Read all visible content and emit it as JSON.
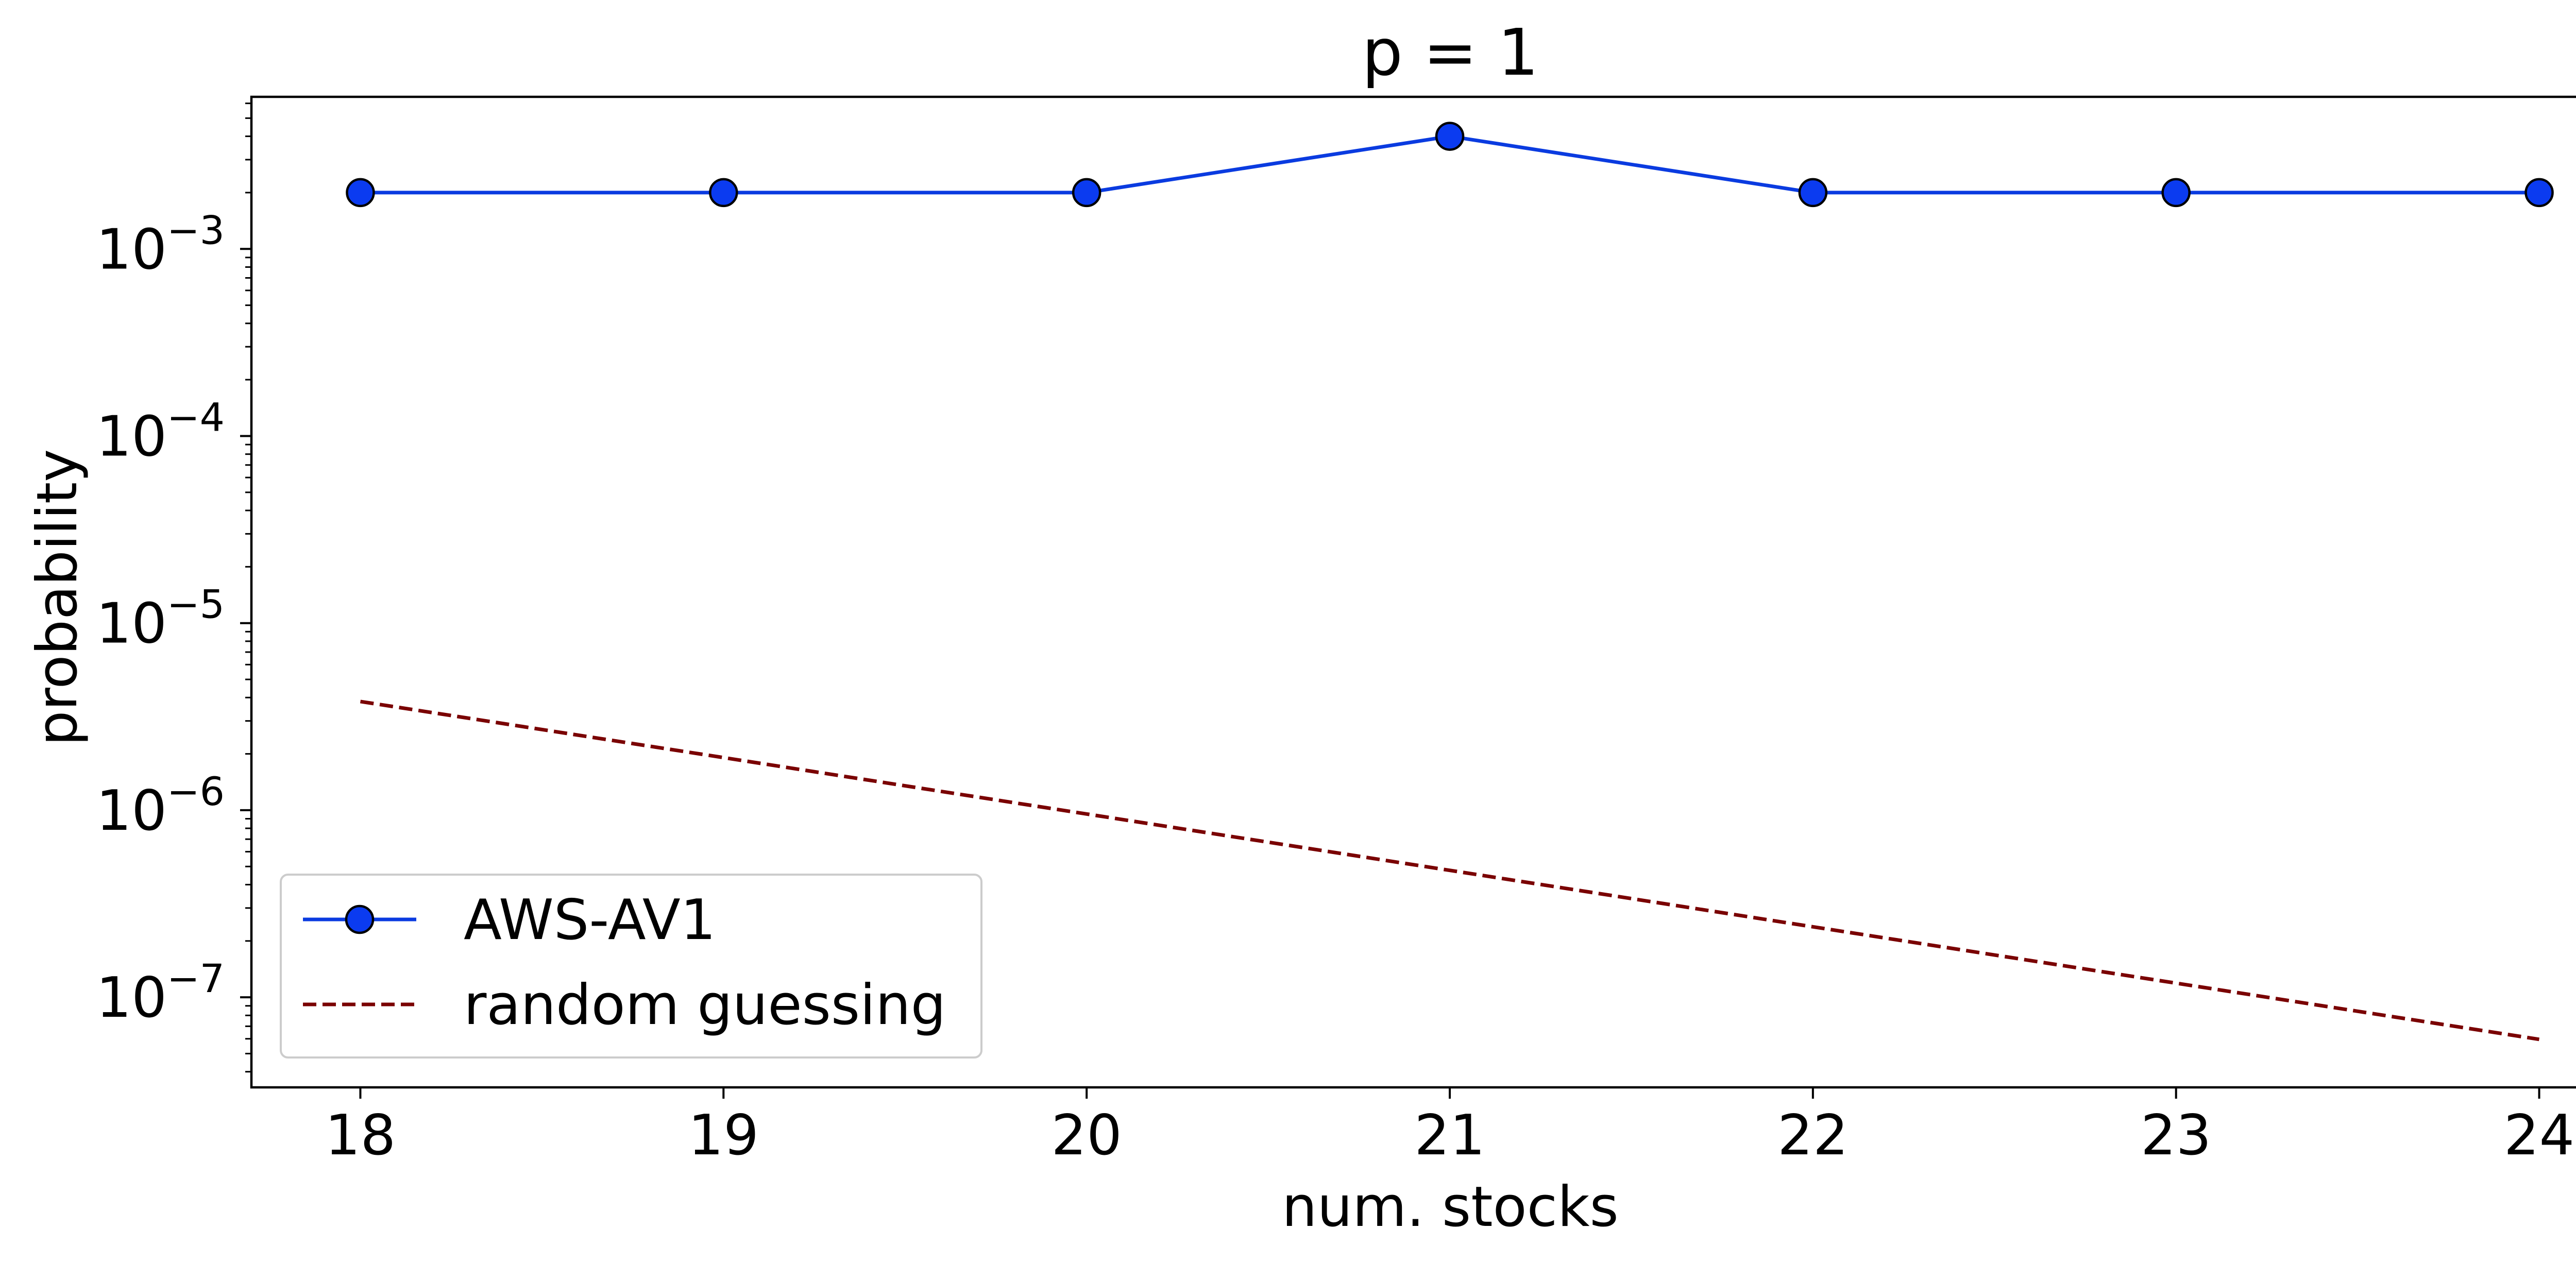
{
  "chart_data": {
    "type": "line",
    "title": "p = 1",
    "xlabel": "num. stocks",
    "ylabel": "probability",
    "x": [
      18,
      19,
      20,
      21,
      22,
      23,
      24
    ],
    "x_tick_labels": [
      "18",
      "19",
      "20",
      "21",
      "22",
      "23",
      "24"
    ],
    "y_scale": "log",
    "y_ticks": [
      {
        "value": 1e-07,
        "base": "10",
        "exp": "−7"
      },
      {
        "value": 1e-06,
        "base": "10",
        "exp": "−6"
      },
      {
        "value": 1e-05,
        "base": "10",
        "exp": "−5"
      },
      {
        "value": 0.0001,
        "base": "10",
        "exp": "−4"
      },
      {
        "value": 0.001,
        "base": "10",
        "exp": "−3"
      }
    ],
    "xlim": [
      17.7,
      24.3
    ],
    "ylim": [
      3.3e-08,
      0.0065
    ],
    "grid": false,
    "legend_position": "lower-left",
    "series": [
      {
        "name": "AWS-AV1",
        "values": [
          0.002,
          0.002,
          0.002,
          0.004,
          0.002,
          0.002,
          0.002
        ],
        "color": "#0a3be0",
        "marker_color": "#0b3bf0",
        "line_style": "solid",
        "marker": "circle"
      },
      {
        "name": "random guessing",
        "values": [
          3.81e-06,
          1.91e-06,
          9.54e-07,
          4.77e-07,
          2.38e-07,
          1.19e-07,
          5.96e-08
        ],
        "color": "#7a0000",
        "line_style": "dashed",
        "marker": "none"
      }
    ]
  }
}
